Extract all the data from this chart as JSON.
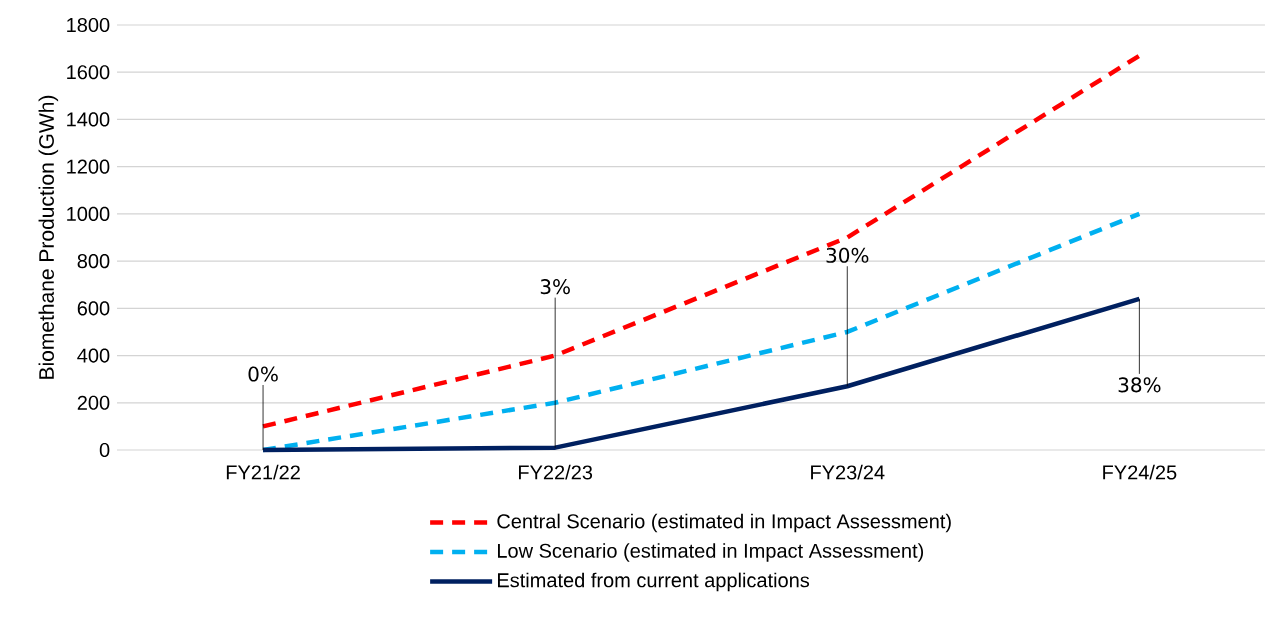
{
  "chart_data": {
    "type": "line",
    "ylabel": "Biomethane Production (GWh)",
    "categories": [
      "FY21/22",
      "FY22/23",
      "FY23/24",
      "FY24/25"
    ],
    "series": [
      {
        "name": "Central Scenario (estimated in Impact Assessment)",
        "color": "#ff0000",
        "line_style": "dashed",
        "values": [
          100,
          400,
          900,
          1670
        ]
      },
      {
        "name": "Low Scenario (estimated in Impact Assessment)",
        "color": "#00b0f0",
        "line_style": "dashed",
        "values": [
          0,
          200,
          500,
          1000
        ]
      },
      {
        "name": "Estimated from current applications",
        "color": "#002060",
        "line_style": "solid",
        "values": [
          0,
          10,
          270,
          640
        ]
      }
    ],
    "ylim": [
      0,
      1800
    ],
    "yticks": [
      0,
      200,
      400,
      600,
      800,
      1000,
      1200,
      1400,
      1600,
      1800
    ],
    "grid": "y",
    "legend": "bottom",
    "annotations": [
      {
        "text": "0%",
        "x": "FY21/22",
        "y": 0
      },
      {
        "text": "3%",
        "x": "FY22/23",
        "y": 10
      },
      {
        "text": "30%",
        "x": "FY23/24",
        "y": 270
      },
      {
        "text": "38%",
        "x": "FY24/25",
        "y": 640
      }
    ]
  }
}
